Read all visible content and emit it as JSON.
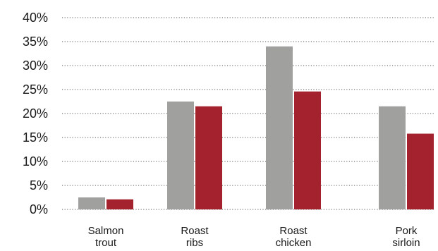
{
  "chart_data": {
    "type": "bar",
    "categories": [
      [
        "Salmon",
        "trout"
      ],
      [
        "Roast",
        "ribs"
      ],
      [
        "Roast",
        "chicken"
      ],
      [
        "Pork",
        "sirloin"
      ]
    ],
    "series": [
      {
        "values": [
          2.5,
          22.5,
          34,
          21.5
        ],
        "color": "#a0a09f"
      },
      {
        "values": [
          2.1,
          21.5,
          24.6,
          15.8
        ],
        "color": "#a3222e"
      }
    ],
    "y_ticks": [
      "0%",
      "5%",
      "10%",
      "15%",
      "20%",
      "25%",
      "30%",
      "35%",
      "40%"
    ],
    "ylim": [
      0,
      40
    ],
    "y_unit": "%",
    "grid": "horizontal dotted",
    "legend": "none"
  }
}
